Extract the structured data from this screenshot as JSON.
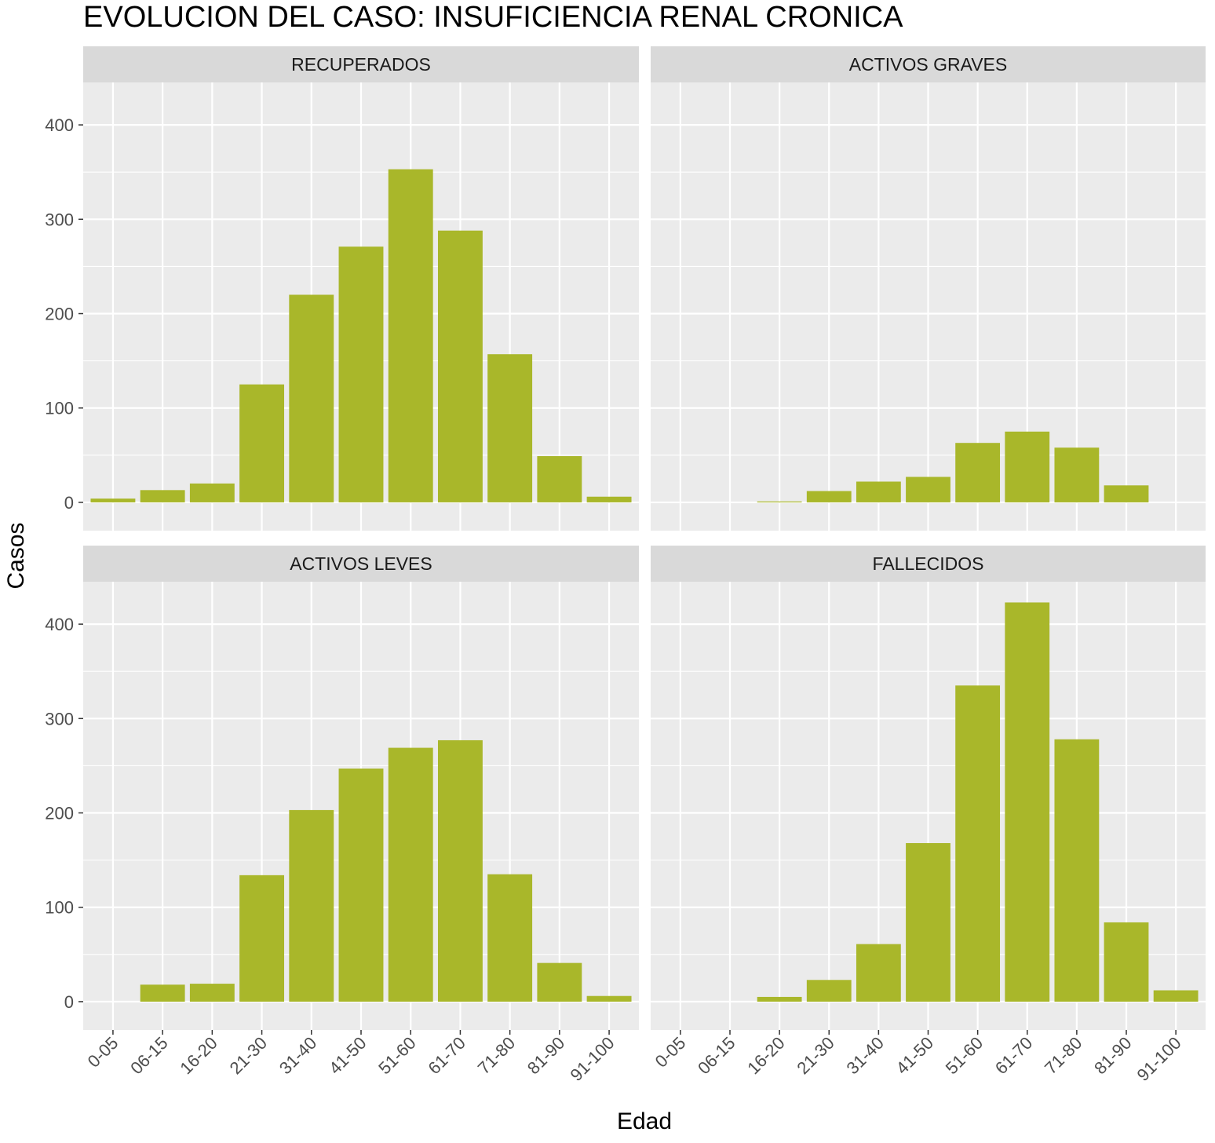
{
  "chart_data": {
    "type": "bar",
    "title": "EVOLUCION DEL CASO: INSUFICIENCIA RENAL CRONICA",
    "xlabel": "Edad",
    "ylabel": "Casos",
    "ylim": [
      -30,
      445
    ],
    "yticks": [
      0,
      100,
      200,
      300,
      400
    ],
    "grid": true,
    "bar_color": "#A9B72A",
    "panel_background": "#EBEBEB",
    "strip_background": "#D9D9D9",
    "categories": [
      "0-05",
      "06-15",
      "16-20",
      "21-30",
      "31-40",
      "41-50",
      "51-60",
      "61-70",
      "71-80",
      "81-90",
      "91-100"
    ],
    "panels": [
      {
        "name": "RECUPERADOS",
        "values": [
          4,
          13,
          20,
          125,
          220,
          271,
          353,
          288,
          157,
          49,
          6
        ]
      },
      {
        "name": "ACTIVOS GRAVES",
        "values": [
          0,
          0,
          1,
          12,
          22,
          27,
          63,
          75,
          58,
          18,
          0
        ]
      },
      {
        "name": "ACTIVOS LEVES",
        "values": [
          0,
          18,
          19,
          134,
          203,
          247,
          269,
          277,
          135,
          41,
          6
        ]
      },
      {
        "name": "FALLECIDOS",
        "values": [
          0,
          0,
          5,
          23,
          61,
          168,
          335,
          423,
          278,
          84,
          12
        ]
      }
    ]
  }
}
